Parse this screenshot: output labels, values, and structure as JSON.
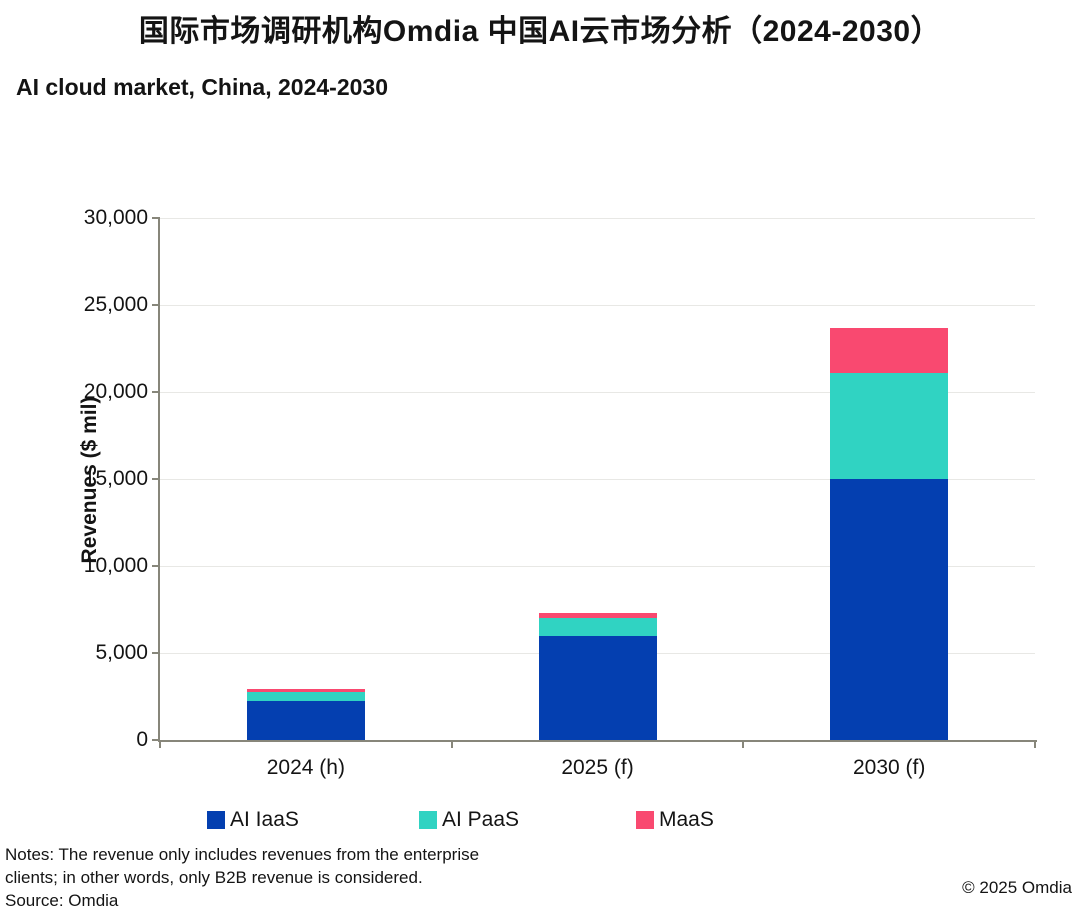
{
  "chart_data": {
    "type": "bar",
    "stacked": true,
    "title": "国际市场调研机构Omdia 中国AI云市场分析（2024-2030）",
    "subtitle": "AI cloud market, China, 2024-2030",
    "categories": [
      "2024 (h)",
      "2025 (f)",
      "2030 (f)"
    ],
    "series": [
      {
        "name": "AI IaaS",
        "color": "#043FB0",
        "values": [
          2250,
          6000,
          15000
        ]
      },
      {
        "name": "AI PaaS",
        "color": "#30D3C2",
        "values": [
          500,
          1000,
          6100
        ]
      },
      {
        "name": "MaaS",
        "color": "#F94970",
        "values": [
          180,
          300,
          2600
        ]
      }
    ],
    "totals_approx": [
      2930,
      7300,
      23700
    ],
    "ylabel": "Revenues ($ mil)",
    "ylim": [
      0,
      30000
    ],
    "ytick_step": 5000,
    "ytick_labels": [
      "0",
      "5,000",
      "10,000",
      "15,000",
      "20,000",
      "25,000",
      "30,000"
    ],
    "grid": "horizontal",
    "legend_position": "bottom",
    "axis_color": "#87867a",
    "gridline_color": "#e8e8e5"
  },
  "notes": {
    "line1": "Notes: The revenue only includes revenues from the enterprise",
    "line2": "clients; in other words, only B2B revenue is considered.",
    "source": "Source: Omdia",
    "copyright": "© 2025 Omdia"
  }
}
